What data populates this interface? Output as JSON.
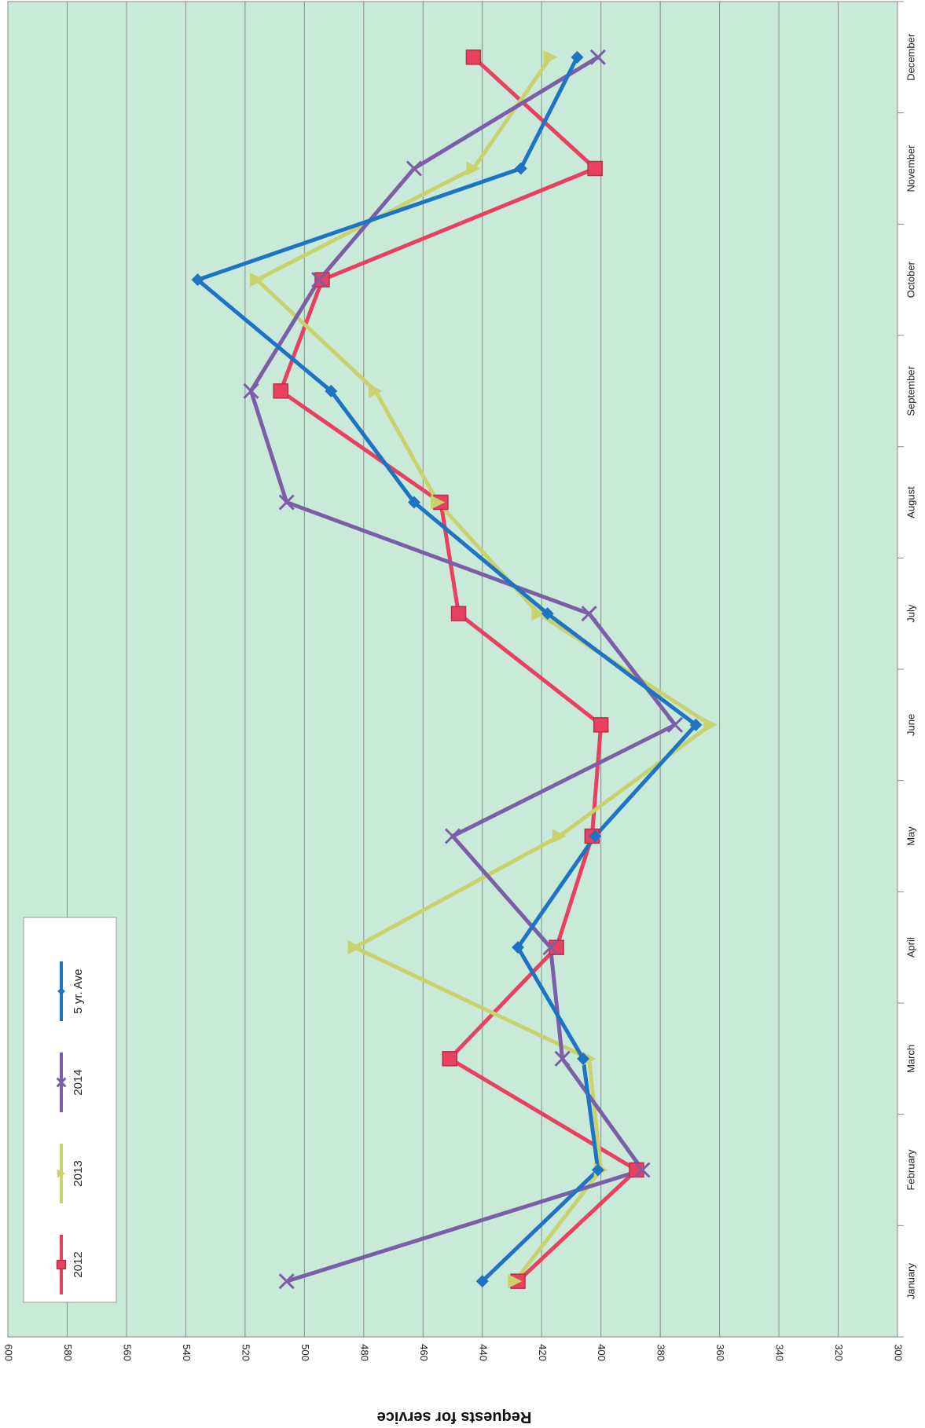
{
  "chart_data": {
    "type": "line",
    "orientation": "rotated-90",
    "categories": [
      "January",
      "February",
      "March",
      "April",
      "May",
      "June",
      "July",
      "August",
      "September",
      "October",
      "November",
      "December"
    ],
    "ylabel": "Requests for service",
    "ylim": [
      300,
      600
    ],
    "yticks": [
      600,
      580,
      560,
      540,
      520,
      500,
      480,
      460,
      440,
      420,
      400,
      380,
      360,
      340,
      320,
      300
    ],
    "grid": true,
    "background": "#c9ead9",
    "legend_position": "bottom-left",
    "series": [
      {
        "name": "2012",
        "color": "#e8405e",
        "marker": "square",
        "values": [
          428,
          388,
          451,
          415,
          403,
          400,
          448,
          454,
          508,
          494,
          402,
          443
        ]
      },
      {
        "name": "2013",
        "color": "#c8d36c",
        "marker": "triangle",
        "values": [
          429,
          400,
          404,
          483,
          414,
          363,
          421,
          455,
          476,
          516,
          443,
          417
        ]
      },
      {
        "name": "2014",
        "color": "#7b5ea8",
        "marker": "x",
        "values": [
          506,
          386,
          413,
          417,
          450,
          375,
          404,
          506,
          518,
          495,
          463,
          401
        ]
      },
      {
        "name": "5 yr. Ave",
        "color": "#1d74c4",
        "marker": "diamond",
        "values": [
          440,
          401,
          406,
          428,
          402,
          368,
          418,
          463,
          491,
          536,
          427,
          408
        ]
      }
    ]
  }
}
